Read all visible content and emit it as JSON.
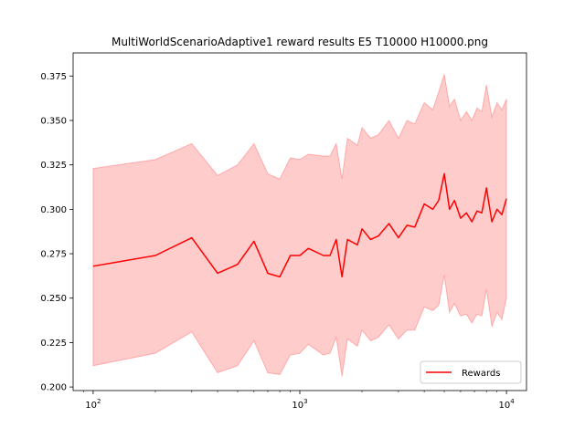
{
  "chart_data": {
    "type": "line",
    "title": "MultiWorldScenarioAdaptive1 reward results E5 T10000 H10000.png",
    "xlabel": "",
    "ylabel": "",
    "x_scale": "log",
    "xlim": [
      80,
      12500
    ],
    "ylim": [
      0.198,
      0.388
    ],
    "x_ticks": [
      {
        "value": 100,
        "base": "10",
        "exp": "2"
      },
      {
        "value": 1000,
        "base": "10",
        "exp": "3"
      },
      {
        "value": 10000,
        "base": "10",
        "exp": "4"
      }
    ],
    "y_ticks": [
      {
        "value": 0.2,
        "label": "0.200"
      },
      {
        "value": 0.225,
        "label": "0.225"
      },
      {
        "value": 0.25,
        "label": "0.250"
      },
      {
        "value": 0.275,
        "label": "0.275"
      },
      {
        "value": 0.3,
        "label": "0.300"
      },
      {
        "value": 0.325,
        "label": "0.325"
      },
      {
        "value": 0.35,
        "label": "0.350"
      },
      {
        "value": 0.375,
        "label": "0.375"
      }
    ],
    "grid": false,
    "legend_position": "lower-right",
    "colors": {
      "line": "#ff0000",
      "band": "#ff0000"
    },
    "series": [
      {
        "name": "Rewards",
        "x": [
          100,
          200,
          300,
          400,
          500,
          600,
          700,
          800,
          900,
          1000,
          1100,
          1300,
          1400,
          1500,
          1600,
          1700,
          1900,
          2000,
          2200,
          2400,
          2700,
          3000,
          3300,
          3600,
          4000,
          4400,
          4700,
          5000,
          5300,
          5600,
          6000,
          6400,
          6800,
          7200,
          7600,
          8000,
          8500,
          9000,
          9500,
          10000
        ],
        "values": [
          0.268,
          0.274,
          0.284,
          0.264,
          0.269,
          0.282,
          0.264,
          0.262,
          0.274,
          0.274,
          0.278,
          0.274,
          0.274,
          0.283,
          0.262,
          0.283,
          0.28,
          0.289,
          0.283,
          0.285,
          0.292,
          0.284,
          0.291,
          0.29,
          0.303,
          0.3,
          0.305,
          0.32,
          0.3,
          0.305,
          0.295,
          0.298,
          0.293,
          0.299,
          0.298,
          0.312,
          0.293,
          0.3,
          0.297,
          0.306
        ],
        "upper": [
          0.323,
          0.328,
          0.337,
          0.319,
          0.325,
          0.337,
          0.32,
          0.317,
          0.329,
          0.328,
          0.331,
          0.33,
          0.33,
          0.337,
          0.317,
          0.34,
          0.336,
          0.346,
          0.34,
          0.342,
          0.35,
          0.34,
          0.35,
          0.348,
          0.36,
          0.356,
          0.366,
          0.376,
          0.358,
          0.362,
          0.35,
          0.355,
          0.35,
          0.357,
          0.355,
          0.37,
          0.352,
          0.36,
          0.356,
          0.362
        ],
        "lower": [
          0.212,
          0.219,
          0.231,
          0.208,
          0.212,
          0.226,
          0.208,
          0.207,
          0.218,
          0.219,
          0.224,
          0.218,
          0.219,
          0.228,
          0.206,
          0.227,
          0.223,
          0.232,
          0.226,
          0.228,
          0.235,
          0.227,
          0.232,
          0.232,
          0.245,
          0.243,
          0.246,
          0.263,
          0.242,
          0.247,
          0.24,
          0.241,
          0.236,
          0.241,
          0.24,
          0.255,
          0.234,
          0.242,
          0.238,
          0.25
        ]
      }
    ]
  }
}
